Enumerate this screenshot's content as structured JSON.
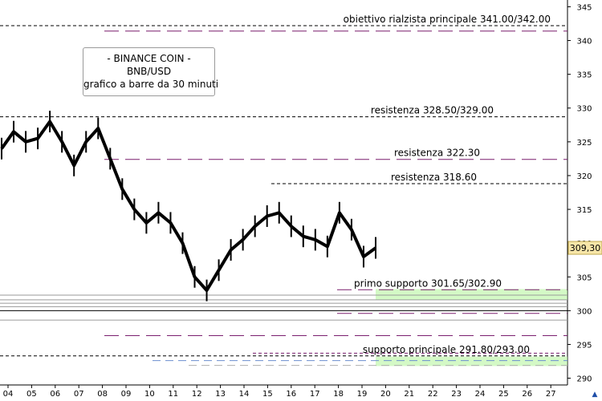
{
  "info_box": {
    "line1": "- BINANCE COIN -",
    "line2": "BNB/USD",
    "line3": "grafico a barre da 30 minuti"
  },
  "price_label": "309,30",
  "colors": {
    "price_series": "#000000",
    "resistance_dash": "#7a1f6f",
    "support_dash_blue": "#6b8fcf",
    "support_zone_green": "#b8f5a0",
    "support_zone_yellow": "#f5f0a0",
    "reference_line": "#000000",
    "price_marker": "#f7e6a8"
  },
  "scroll_icon": "up-arrow-icon",
  "chart_data": {
    "type": "bar",
    "description_type": "ohlc-30min-price",
    "ylim": [
      289,
      346
    ],
    "y_ticks": [
      290,
      295,
      300,
      305,
      310,
      315,
      320,
      325,
      330,
      335,
      340,
      345
    ],
    "x_ticks": [
      "04",
      "05",
      "06",
      "07",
      "08",
      "09",
      "10",
      "11",
      "12",
      "13",
      "14",
      "15",
      "16",
      "17",
      "18",
      "19",
      "20",
      "21",
      "22",
      "23",
      "24",
      "25",
      "26",
      "27"
    ],
    "last_price": 309.3,
    "series": [
      {
        "name": "BNB/USD",
        "points": [
          {
            "x": "04",
            "y": 324
          },
          {
            "x": "04.5",
            "y": 326.5
          },
          {
            "x": "05",
            "y": 325
          },
          {
            "x": "05.5",
            "y": 325.5
          },
          {
            "x": "06",
            "y": 328
          },
          {
            "x": "06.5",
            "y": 325
          },
          {
            "x": "07",
            "y": 321.5
          },
          {
            "x": "07.5",
            "y": 325
          },
          {
            "x": "08",
            "y": 327
          },
          {
            "x": "08.5",
            "y": 322.5
          },
          {
            "x": "09",
            "y": 318
          },
          {
            "x": "09.5",
            "y": 315
          },
          {
            "x": "10",
            "y": 313
          },
          {
            "x": "10.5",
            "y": 314.5
          },
          {
            "x": "11",
            "y": 313
          },
          {
            "x": "11.5",
            "y": 310
          },
          {
            "x": "12",
            "y": 305
          },
          {
            "x": "12.5",
            "y": 303
          },
          {
            "x": "13",
            "y": 306
          },
          {
            "x": "13.5",
            "y": 309
          },
          {
            "x": "14",
            "y": 310.5
          },
          {
            "x": "14.5",
            "y": 312.5
          },
          {
            "x": "15",
            "y": 314
          },
          {
            "x": "15.5",
            "y": 314.5
          },
          {
            "x": "16",
            "y": 312.5
          },
          {
            "x": "16.5",
            "y": 311
          },
          {
            "x": "17",
            "y": 310.5
          },
          {
            "x": "17.5",
            "y": 309.5
          },
          {
            "x": "18",
            "y": 314.5
          },
          {
            "x": "18.5",
            "y": 312
          },
          {
            "x": "19",
            "y": 308
          },
          {
            "x": "19.5",
            "y": 309.3
          }
        ]
      }
    ],
    "levels": [
      {
        "label": "obiettivo rialzista principale 341.00/342.00",
        "y": 342.2
      },
      {
        "label": "resistenza 328.50/329.00",
        "y": 328.7
      },
      {
        "label": "resistenza 322.30",
        "y": 322.4
      },
      {
        "label": "resistenza 318.60",
        "y": 318.8
      },
      {
        "label": "primo supporto 301.65/302.90",
        "y": 303.1
      },
      {
        "label": "supporto principale 291.80/293.00",
        "y": 293.3
      }
    ],
    "extra_lines": [
      341.4,
      302.3,
      301.6,
      301.1,
      300.6,
      300.0,
      299.6,
      298.6,
      296.3,
      293.7,
      292.6,
      291.9
    ],
    "grid": false,
    "legend": "none"
  }
}
